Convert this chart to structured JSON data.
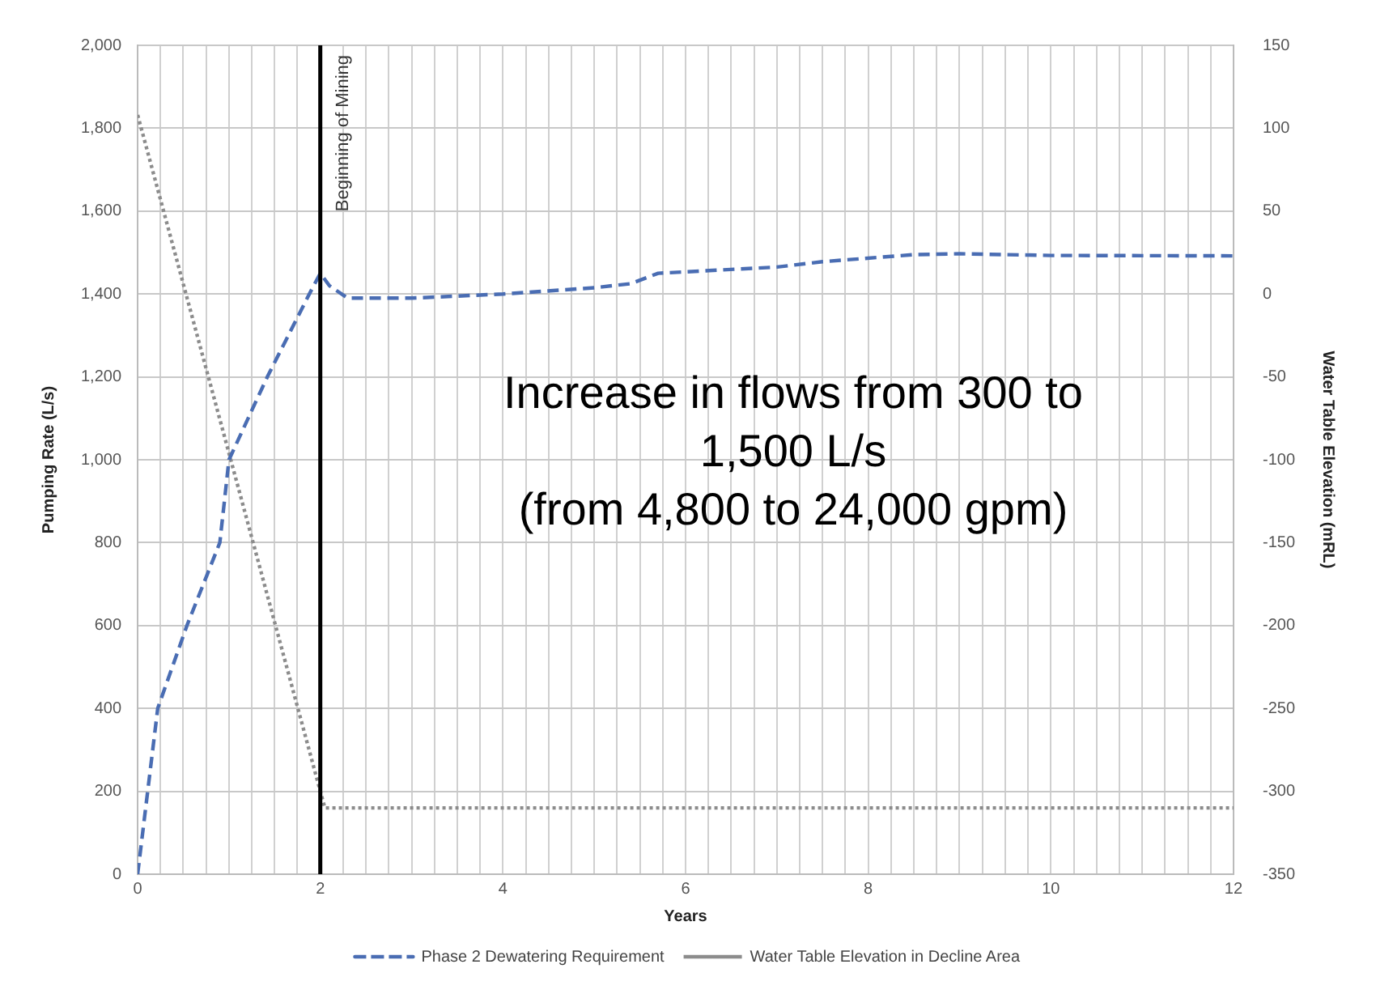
{
  "chart_data": {
    "type": "line",
    "xlabel": "Years",
    "ylabel": "Pumping Rate (L/s)",
    "y2label": "Water Table Elevation (mRL)",
    "xlim": [
      0,
      12
    ],
    "xticks": [
      0,
      {
        "value": 0.25,
        "label": null
      },
      {
        "value": 0.5,
        "label": null
      },
      {
        "value": 0.75,
        "label": null
      },
      {
        "value": 1,
        "label": null
      },
      {
        "value": 1.25,
        "label": null
      },
      {
        "value": 1.5,
        "label": null
      },
      {
        "value": 1.75,
        "label": null
      },
      2,
      {
        "value": 2.25,
        "label": null
      },
      {
        "value": 2.5,
        "label": null
      },
      {
        "value": 2.75,
        "label": null
      },
      {
        "value": 3,
        "label": null
      },
      {
        "value": 3.25,
        "label": null
      },
      {
        "value": 3.5,
        "label": null
      },
      {
        "value": 3.75,
        "label": null
      },
      4,
      {
        "value": 4.25,
        "label": null
      },
      {
        "value": 4.5,
        "label": null
      },
      {
        "value": 4.75,
        "label": null
      },
      {
        "value": 5,
        "label": null
      },
      {
        "value": 5.25,
        "label": null
      },
      {
        "value": 5.5,
        "label": null
      },
      {
        "value": 5.75,
        "label": null
      },
      6,
      {
        "value": 6.25,
        "label": null
      },
      {
        "value": 6.5,
        "label": null
      },
      {
        "value": 6.75,
        "label": null
      },
      {
        "value": 7,
        "label": null
      },
      {
        "value": 7.25,
        "label": null
      },
      {
        "value": 7.5,
        "label": null
      },
      {
        "value": 7.75,
        "label": null
      },
      8,
      {
        "value": 8.25,
        "label": null
      },
      {
        "value": 8.5,
        "label": null
      },
      {
        "value": 8.75,
        "label": null
      },
      {
        "value": 9,
        "label": null
      },
      {
        "value": 9.25,
        "label": null
      },
      {
        "value": 9.5,
        "label": null
      },
      {
        "value": 9.75,
        "label": null
      },
      10,
      {
        "value": 10.25,
        "label": null
      },
      {
        "value": 10.5,
        "label": null
      },
      {
        "value": 10.75,
        "label": null
      },
      {
        "value": 11,
        "label": null
      },
      {
        "value": 11.25,
        "label": null
      },
      {
        "value": 11.5,
        "label": null
      },
      {
        "value": 11.75,
        "label": null
      },
      12
    ],
    "ylim": [
      0,
      2000
    ],
    "yticks": [
      0,
      200,
      400,
      600,
      800,
      {
        "value": 1000,
        "label": "1,000"
      },
      {
        "value": 1200,
        "label": "1,200"
      },
      {
        "value": 1400,
        "label": "1,400"
      },
      {
        "value": 1600,
        "label": "1,600"
      },
      {
        "value": 1800,
        "label": "1,800"
      },
      {
        "value": 2000,
        "label": "2,000"
      }
    ],
    "y2lim": [
      -350,
      150
    ],
    "y2ticks": [
      -350,
      -300,
      -250,
      -200,
      -150,
      -100,
      -50,
      0,
      50,
      100,
      150
    ],
    "grid": true,
    "legend": "bottom",
    "marker": "none",
    "series": [
      {
        "name": "Phase 2 Dewatering Requirement",
        "color": "#4a6db3",
        "line_style": "dashed",
        "x": [
          0,
          0.22,
          0.54,
          0.9,
          1.0,
          1.42,
          1.88,
          2,
          2.1,
          2.3,
          3,
          4,
          5,
          5.4,
          5.7,
          7,
          7.5,
          8.5,
          9,
          10,
          12
        ],
        "values": [
          0,
          400,
          600,
          800,
          1000,
          1200,
          1400,
          1450,
          1420,
          1390,
          1390,
          1400,
          1415,
          1425,
          1450,
          1465,
          1478,
          1495,
          1497,
          1493,
          1492
        ]
      },
      {
        "name": "Water Table Elevation in Decline Area",
        "color": "#8c8c8c",
        "line_style": "dotted",
        "axis": "y2",
        "x": [
          0,
          2,
          2.05,
          12
        ],
        "values": [
          108,
          -300,
          -310,
          -310
        ]
      }
    ],
    "ref_lines": [
      {
        "axis": "x",
        "value": 2,
        "label": "Beginning of Mining",
        "color": "#000000"
      }
    ],
    "annotations": [
      "Increase in flows from 300 to\n1,500 L/s\n(from 4,800 to 24,000 gpm)"
    ]
  }
}
